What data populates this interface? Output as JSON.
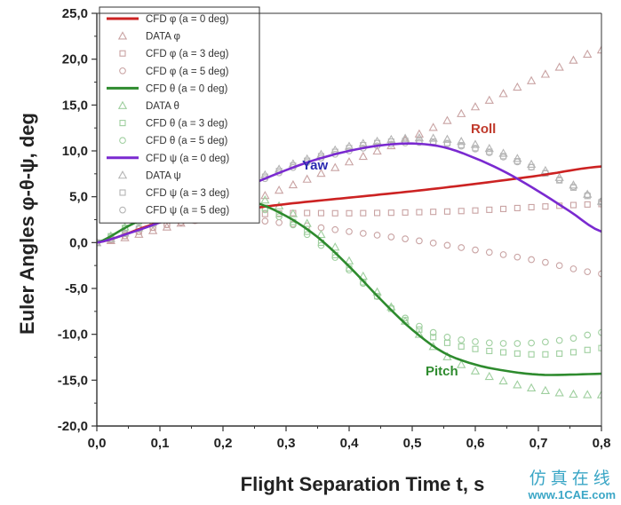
{
  "chart_data": {
    "type": "line",
    "xlabel": "Flight Separation Time t, s",
    "ylabel": "Euler Angles φ-θ-ψ, deg",
    "xlim": [
      0,
      0.8
    ],
    "ylim": [
      -20,
      25
    ],
    "x_ticks": [
      "0,0",
      "0,1",
      "0,2",
      "0,3",
      "0,4",
      "0,5",
      "0,6",
      "0,7",
      "0,8"
    ],
    "y_ticks": [
      "-20,0",
      "-15,0",
      "-10,0",
      "-5,0",
      "0,0",
      "5,0",
      "10,0",
      "15,0",
      "20,0",
      "25,0"
    ],
    "annotations": [
      {
        "text": "Roll",
        "color": "#c0392b"
      },
      {
        "text": "Yaw",
        "color": "#2a2ab0"
      },
      {
        "text": "Pitch",
        "color": "#2e8b2e"
      }
    ],
    "series": [
      {
        "name": "CFD φ (a = 0 deg)",
        "kind": "line",
        "color": "#cc2222",
        "x": [
          0,
          0.1,
          0.2,
          0.3,
          0.4,
          0.5,
          0.6,
          0.7,
          0.8
        ],
        "y": [
          0,
          2.2,
          3.3,
          4.2,
          4.9,
          5.6,
          6.4,
          7.3,
          8.3
        ]
      },
      {
        "name": "DATA φ",
        "kind": "marker",
        "marker": "triangle",
        "color": "#c9a3a3",
        "x": [
          0,
          0.1,
          0.2,
          0.3,
          0.4,
          0.5,
          0.6,
          0.7,
          0.8
        ],
        "y": [
          0,
          1.5,
          3.5,
          6.0,
          8.8,
          11.5,
          14.8,
          18.0,
          21.0
        ]
      },
      {
        "name": "CFD φ (a = 3 deg)",
        "kind": "marker",
        "marker": "square",
        "color": "#c9a3a3",
        "x": [
          0,
          0.1,
          0.2,
          0.3,
          0.4,
          0.5,
          0.6,
          0.7,
          0.8
        ],
        "y": [
          0,
          1.8,
          2.8,
          3.2,
          3.2,
          3.3,
          3.5,
          3.9,
          4.2
        ]
      },
      {
        "name": "CFD φ (a = 5 deg)",
        "kind": "marker",
        "marker": "circle",
        "color": "#c9a3a3",
        "x": [
          0,
          0.1,
          0.2,
          0.3,
          0.4,
          0.5,
          0.6,
          0.7,
          0.8
        ],
        "y": [
          0,
          1.8,
          2.6,
          2.1,
          1.2,
          0.3,
          -0.8,
          -2.0,
          -3.4
        ]
      },
      {
        "name": "CFD θ (a = 0 deg)",
        "kind": "line",
        "color": "#2e8b2e",
        "x": [
          0,
          0.05,
          0.1,
          0.15,
          0.2,
          0.25,
          0.3,
          0.35,
          0.4,
          0.45,
          0.5,
          0.55,
          0.6,
          0.65,
          0.7,
          0.75,
          0.8
        ],
        "y": [
          0,
          1.8,
          3.4,
          4.6,
          4.9,
          4.4,
          2.9,
          0.6,
          -2.6,
          -6.2,
          -9.5,
          -12.0,
          -13.3,
          -14.0,
          -14.4,
          -14.4,
          -14.3
        ]
      },
      {
        "name": "DATA θ",
        "kind": "marker",
        "marker": "triangle",
        "color": "#9fcf9f",
        "x": [
          0,
          0.05,
          0.1,
          0.15,
          0.2,
          0.25,
          0.3,
          0.35,
          0.4,
          0.45,
          0.5,
          0.55,
          0.6,
          0.65,
          0.7,
          0.75,
          0.8
        ],
        "y": [
          0,
          1.9,
          3.6,
          4.9,
          5.4,
          5.0,
          3.6,
          1.2,
          -2.0,
          -5.8,
          -9.3,
          -12.2,
          -14.0,
          -15.2,
          -16.0,
          -16.5,
          -16.6
        ]
      },
      {
        "name": "CFD θ (a = 3 deg)",
        "kind": "marker",
        "marker": "square",
        "color": "#9fcf9f",
        "x": [
          0,
          0.05,
          0.1,
          0.15,
          0.2,
          0.25,
          0.3,
          0.35,
          0.4,
          0.45,
          0.5,
          0.55,
          0.6,
          0.65,
          0.7,
          0.75,
          0.8
        ],
        "y": [
          0,
          1.8,
          3.3,
          4.5,
          4.8,
          4.2,
          2.7,
          0.3,
          -2.8,
          -6.2,
          -9.0,
          -10.8,
          -11.6,
          -12.0,
          -12.2,
          -12.0,
          -11.5
        ]
      },
      {
        "name": "CFD θ (a = 5 deg)",
        "kind": "marker",
        "marker": "circle",
        "color": "#9fcf9f",
        "x": [
          0,
          0.05,
          0.1,
          0.15,
          0.2,
          0.25,
          0.3,
          0.35,
          0.4,
          0.45,
          0.5,
          0.55,
          0.6,
          0.65,
          0.7,
          0.75,
          0.8
        ],
        "y": [
          0,
          1.7,
          3.2,
          4.3,
          4.6,
          4.0,
          2.4,
          0.0,
          -3.0,
          -6.2,
          -8.7,
          -10.2,
          -10.8,
          -11.0,
          -10.9,
          -10.5,
          -9.8
        ]
      },
      {
        "name": "CFD ψ (a = 0 deg)",
        "kind": "line",
        "color": "#7a2ad0",
        "x": [
          0,
          0.05,
          0.1,
          0.15,
          0.2,
          0.25,
          0.3,
          0.35,
          0.4,
          0.45,
          0.5,
          0.55,
          0.6,
          0.65,
          0.7,
          0.75,
          0.8
        ],
        "y": [
          0,
          1.0,
          2.2,
          3.6,
          5.0,
          6.5,
          7.9,
          9.1,
          10.0,
          10.6,
          10.8,
          10.4,
          9.2,
          7.6,
          5.6,
          3.4,
          1.2
        ]
      },
      {
        "name": "DATA ψ",
        "kind": "marker",
        "marker": "triangle",
        "color": "#b5b5b5",
        "x": [
          0,
          0.05,
          0.1,
          0.15,
          0.2,
          0.25,
          0.3,
          0.35,
          0.4,
          0.45,
          0.5,
          0.55,
          0.6,
          0.65,
          0.7,
          0.75,
          0.8
        ],
        "y": [
          0,
          1.2,
          2.5,
          3.9,
          5.4,
          6.9,
          8.3,
          9.5,
          10.5,
          11.1,
          11.4,
          11.3,
          10.7,
          9.6,
          8.2,
          6.5,
          4.5
        ]
      },
      {
        "name": "CFD ψ (a = 3 deg)",
        "kind": "marker",
        "marker": "square",
        "color": "#b5b5b5",
        "x": [
          0,
          0.05,
          0.1,
          0.15,
          0.2,
          0.25,
          0.3,
          0.35,
          0.4,
          0.45,
          0.5,
          0.55,
          0.6,
          0.65,
          0.7,
          0.75,
          0.8
        ],
        "y": [
          0,
          1.1,
          2.4,
          3.8,
          5.2,
          6.7,
          8.1,
          9.3,
          10.3,
          10.9,
          11.1,
          10.9,
          10.3,
          9.3,
          7.9,
          6.2,
          4.4
        ]
      },
      {
        "name": "CFD ψ (a = 5 deg)",
        "kind": "marker",
        "marker": "circle",
        "color": "#b5b5b5",
        "x": [
          0,
          0.05,
          0.1,
          0.15,
          0.2,
          0.25,
          0.3,
          0.35,
          0.4,
          0.45,
          0.5,
          0.55,
          0.6,
          0.65,
          0.7,
          0.75,
          0.8
        ],
        "y": [
          0,
          1.1,
          2.3,
          3.7,
          5.1,
          6.5,
          7.9,
          9.1,
          10.0,
          10.6,
          10.9,
          10.8,
          10.2,
          9.2,
          7.9,
          6.3,
          4.5
        ]
      }
    ]
  },
  "watermark": {
    "chinese": "仿真在线",
    "url": "www.1CAE.com"
  }
}
